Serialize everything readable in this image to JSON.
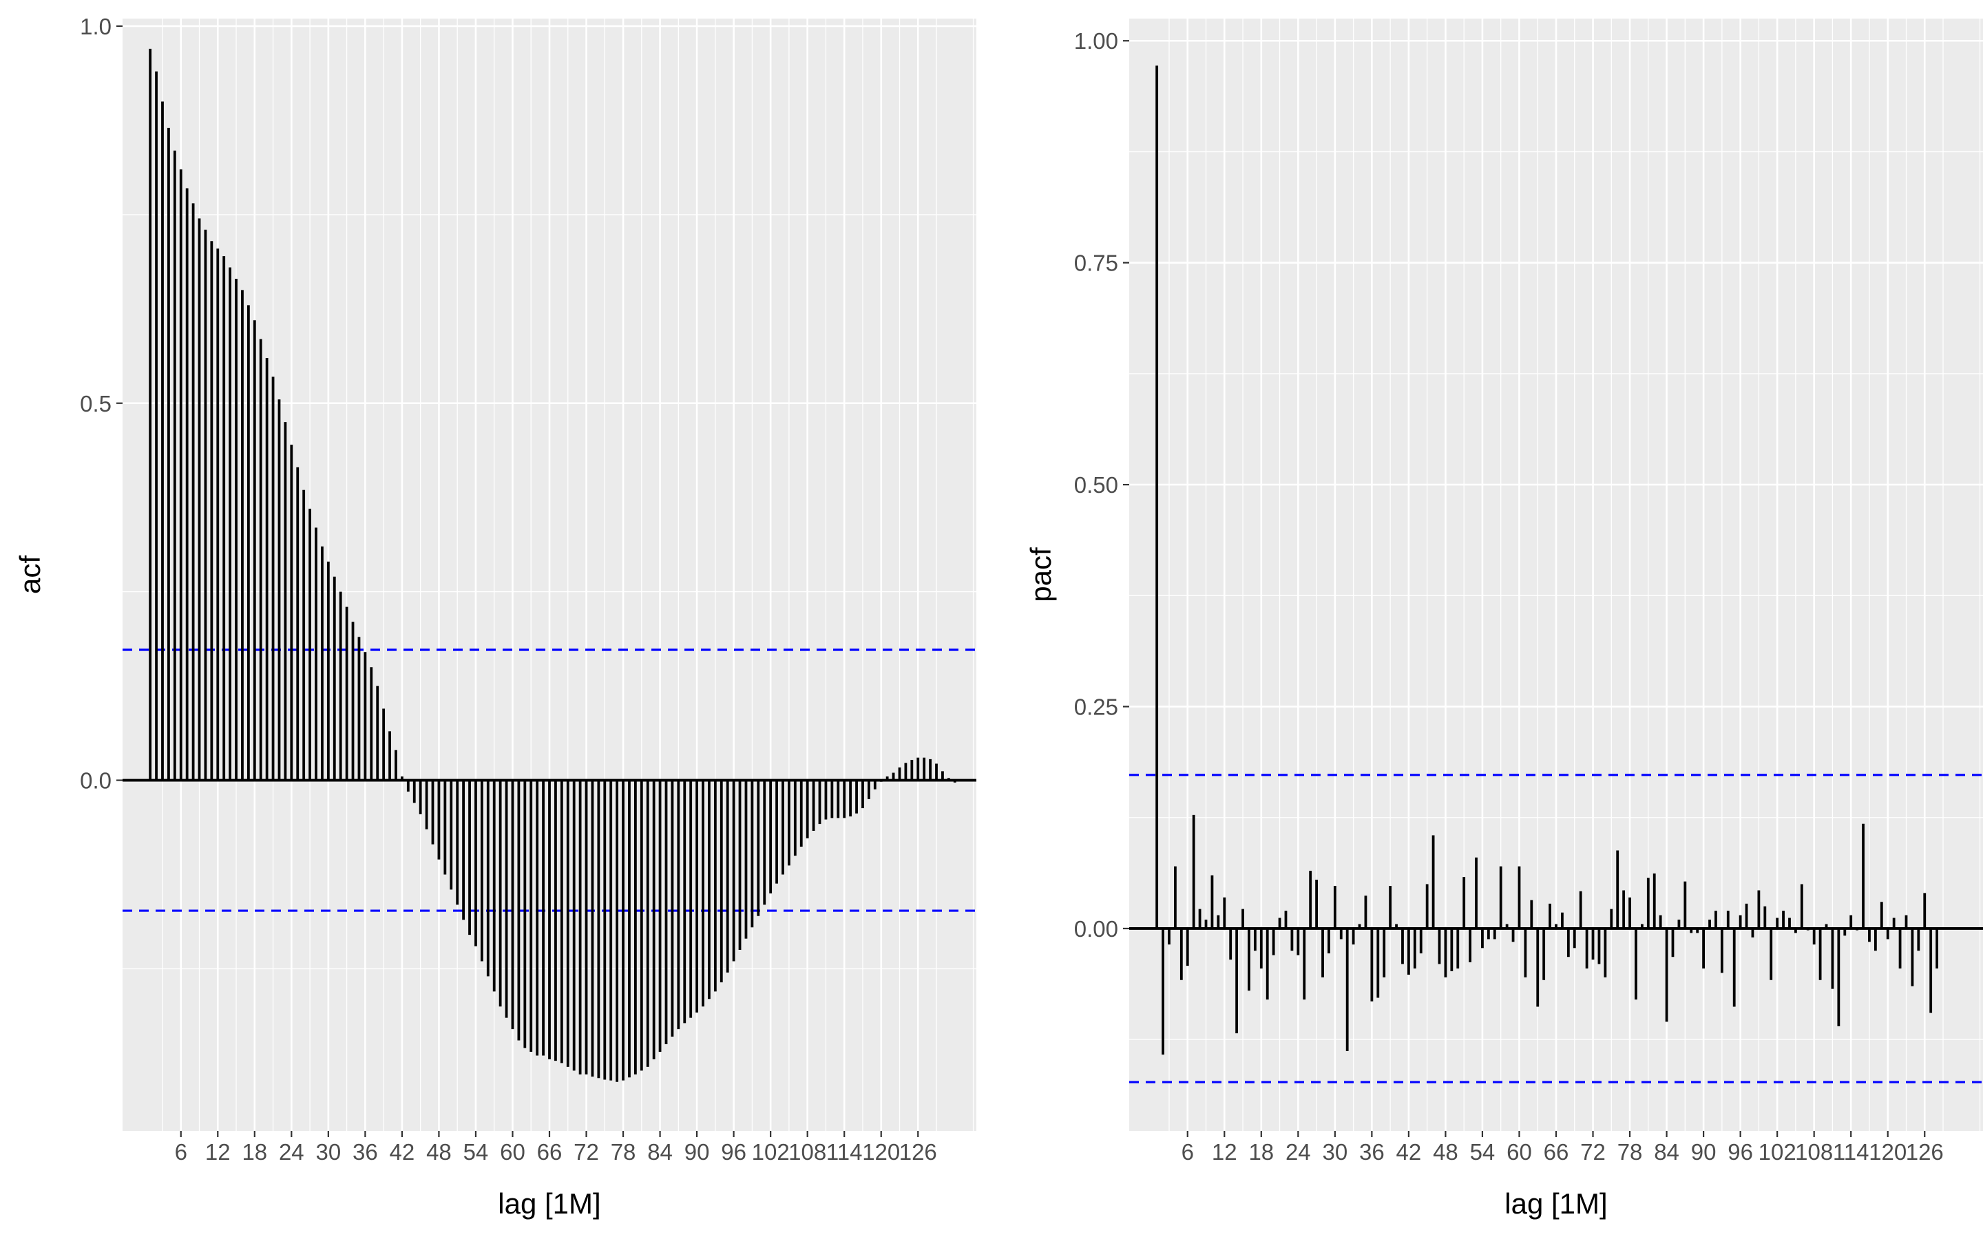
{
  "chart_data": [
    {
      "type": "bar",
      "ylabel": "acf",
      "xlabel": "lag [1M]",
      "ylim": [
        -0.465,
        1.01
      ],
      "xlim": [
        -3.5,
        135.5
      ],
      "y_ticks": [
        0.0,
        0.5,
        1.0
      ],
      "y_tick_labels": [
        "0.0",
        "0.5",
        "1.0"
      ],
      "x_ticks": [
        6,
        12,
        18,
        24,
        30,
        36,
        42,
        48,
        54,
        60,
        66,
        72,
        78,
        84,
        90,
        96,
        102,
        108,
        114,
        120,
        126
      ],
      "x_tick_labels": [
        "6",
        "12",
        "18",
        "24",
        "30",
        "36",
        "42",
        "48",
        "54",
        "60",
        "66",
        "72",
        "78",
        "84",
        "90",
        "96",
        "102",
        "108",
        "114",
        "120",
        "126"
      ],
      "confidence_bounds": [
        0.173,
        -0.173
      ],
      "confidence_color": "#0000ff",
      "bar_color": "#000000",
      "panel_background": "#ebebeb",
      "grid": true,
      "x": [
        1,
        2,
        3,
        4,
        5,
        6,
        7,
        8,
        9,
        10,
        11,
        12,
        13,
        14,
        15,
        16,
        17,
        18,
        19,
        20,
        21,
        22,
        23,
        24,
        25,
        26,
        27,
        28,
        29,
        30,
        31,
        32,
        33,
        34,
        35,
        36,
        37,
        38,
        39,
        40,
        41,
        42,
        43,
        44,
        45,
        46,
        47,
        48,
        49,
        50,
        51,
        52,
        53,
        54,
        55,
        56,
        57,
        58,
        59,
        60,
        61,
        62,
        63,
        64,
        65,
        66,
        67,
        68,
        69,
        70,
        71,
        72,
        73,
        74,
        75,
        76,
        77,
        78,
        79,
        80,
        81,
        82,
        83,
        84,
        85,
        86,
        87,
        88,
        89,
        90,
        91,
        92,
        93,
        94,
        95,
        96,
        97,
        98,
        99,
        100,
        101,
        102,
        103,
        104,
        105,
        106,
        107,
        108,
        109,
        110,
        111,
        112,
        113,
        114,
        115,
        116,
        117,
        118,
        119,
        120,
        121,
        122,
        123,
        124,
        125,
        126,
        127,
        128,
        129,
        130,
        131,
        132
      ],
      "values": [
        0.97,
        0.94,
        0.9,
        0.865,
        0.835,
        0.81,
        0.785,
        0.765,
        0.745,
        0.73,
        0.715,
        0.705,
        0.695,
        0.68,
        0.665,
        0.65,
        0.63,
        0.61,
        0.585,
        0.56,
        0.535,
        0.505,
        0.475,
        0.445,
        0.415,
        0.385,
        0.36,
        0.335,
        0.31,
        0.29,
        0.27,
        0.25,
        0.23,
        0.21,
        0.19,
        0.17,
        0.15,
        0.125,
        0.095,
        0.065,
        0.04,
        0.005,
        -0.015,
        -0.03,
        -0.045,
        -0.065,
        -0.085,
        -0.105,
        -0.125,
        -0.145,
        -0.165,
        -0.185,
        -0.205,
        -0.22,
        -0.24,
        -0.26,
        -0.28,
        -0.3,
        -0.315,
        -0.33,
        -0.345,
        -0.355,
        -0.36,
        -0.365,
        -0.365,
        -0.37,
        -0.372,
        -0.375,
        -0.38,
        -0.385,
        -0.39,
        -0.39,
        -0.393,
        -0.395,
        -0.397,
        -0.398,
        -0.4,
        -0.398,
        -0.394,
        -0.39,
        -0.385,
        -0.38,
        -0.37,
        -0.36,
        -0.35,
        -0.34,
        -0.33,
        -0.322,
        -0.315,
        -0.308,
        -0.3,
        -0.29,
        -0.28,
        -0.268,
        -0.255,
        -0.24,
        -0.225,
        -0.21,
        -0.195,
        -0.18,
        -0.165,
        -0.15,
        -0.137,
        -0.125,
        -0.113,
        -0.1,
        -0.088,
        -0.077,
        -0.067,
        -0.058,
        -0.052,
        -0.05,
        -0.05,
        -0.05,
        -0.048,
        -0.044,
        -0.037,
        -0.025,
        -0.012,
        -0.002,
        0.005,
        0.01,
        0.017,
        0.023,
        0.027,
        0.03,
        0.03,
        0.028,
        0.022,
        0.012,
        0.003,
        -0.003
      ]
    },
    {
      "type": "bar",
      "ylabel": "pacf",
      "xlabel": "lag [1M]",
      "ylim": [
        -0.228,
        1.025
      ],
      "xlim": [
        -3.5,
        135.5
      ],
      "y_ticks": [
        0.0,
        0.25,
        0.5,
        0.75,
        1.0
      ],
      "y_tick_labels": [
        "0.00",
        "0.25",
        "0.50",
        "0.75",
        "1.00"
      ],
      "x_ticks": [
        6,
        12,
        18,
        24,
        30,
        36,
        42,
        48,
        54,
        60,
        66,
        72,
        78,
        84,
        90,
        96,
        102,
        108,
        114,
        120,
        126
      ],
      "x_tick_labels": [
        "6",
        "12",
        "18",
        "24",
        "30",
        "36",
        "42",
        "48",
        "54",
        "60",
        "66",
        "72",
        "78",
        "84",
        "90",
        "96",
        "102",
        "108",
        "114",
        "120",
        "126"
      ],
      "confidence_bounds": [
        0.173,
        -0.173
      ],
      "confidence_color": "#0000ff",
      "bar_color": "#000000",
      "panel_background": "#ebebeb",
      "grid": true,
      "x": [
        1,
        2,
        3,
        4,
        5,
        6,
        7,
        8,
        9,
        10,
        11,
        12,
        13,
        14,
        15,
        16,
        17,
        18,
        19,
        20,
        21,
        22,
        23,
        24,
        25,
        26,
        27,
        28,
        29,
        30,
        31,
        32,
        33,
        34,
        35,
        36,
        37,
        38,
        39,
        40,
        41,
        42,
        43,
        44,
        45,
        46,
        47,
        48,
        49,
        50,
        51,
        52,
        53,
        54,
        55,
        56,
        57,
        58,
        59,
        60,
        61,
        62,
        63,
        64,
        65,
        66,
        67,
        68,
        69,
        70,
        71,
        72,
        73,
        74,
        75,
        76,
        77,
        78,
        79,
        80,
        81,
        82,
        83,
        84,
        85,
        86,
        87,
        88,
        89,
        90,
        91,
        92,
        93,
        94,
        95,
        96,
        97,
        98,
        99,
        100,
        101,
        102,
        103,
        104,
        105,
        106,
        107,
        108,
        109,
        110,
        111,
        112,
        113,
        114,
        115,
        116,
        117,
        118,
        119,
        120,
        121,
        122,
        123,
        124,
        125,
        126,
        127,
        128,
        129,
        130,
        131,
        132
      ],
      "values": [
        0.972,
        -0.142,
        -0.018,
        0.07,
        -0.058,
        -0.042,
        0.128,
        0.022,
        0.01,
        0.06,
        0.015,
        0.035,
        -0.035,
        -0.118,
        0.022,
        -0.07,
        -0.025,
        -0.045,
        -0.08,
        -0.03,
        0.012,
        0.02,
        -0.025,
        -0.03,
        -0.08,
        0.065,
        0.055,
        -0.055,
        -0.028,
        0.048,
        -0.012,
        -0.138,
        -0.018,
        0.005,
        0.037,
        -0.082,
        -0.078,
        -0.055,
        0.048,
        0.005,
        -0.04,
        -0.052,
        -0.045,
        -0.028,
        0.05,
        0.105,
        -0.04,
        -0.055,
        -0.048,
        -0.045,
        0.058,
        -0.038,
        0.08,
        -0.022,
        -0.012,
        -0.012,
        0.07,
        0.005,
        -0.015,
        0.07,
        -0.055,
        0.032,
        -0.088,
        -0.058,
        0.028,
        0.005,
        0.018,
        -0.032,
        -0.022,
        0.042,
        -0.045,
        -0.035,
        -0.04,
        -0.055,
        0.022,
        0.088,
        0.043,
        0.035,
        -0.08,
        0.005,
        0.057,
        0.062,
        0.015,
        -0.105,
        -0.032,
        0.01,
        0.053,
        -0.005,
        -0.005,
        -0.045,
        0.01,
        0.02,
        -0.05,
        0.02,
        -0.088,
        0.015,
        0.028,
        -0.01,
        0.043,
        0.025,
        -0.058,
        0.012,
        0.02,
        0.012,
        -0.005,
        0.05,
        -0.002,
        -0.018,
        -0.058,
        0.005,
        -0.068,
        -0.11,
        -0.008,
        0.015,
        -0.002,
        0.118,
        -0.015,
        -0.025,
        0.03,
        -0.012,
        0.012,
        -0.045,
        0.015,
        -0.065,
        -0.025,
        0.04,
        -0.095,
        -0.045,
        0.0,
        0.0,
        0.0,
        0.0
      ]
    }
  ]
}
